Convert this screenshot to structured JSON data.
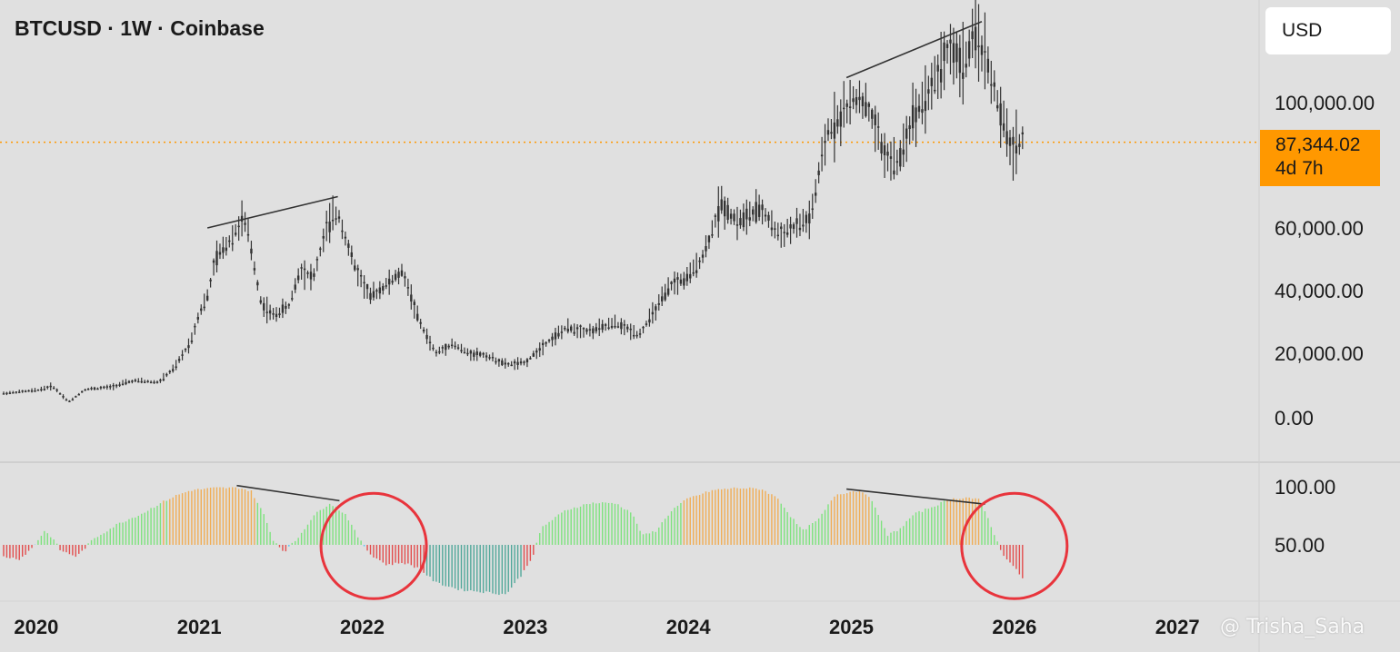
{
  "header": {
    "title": "BTCUSD · 1W · Coinbase"
  },
  "currency": {
    "label": "USD"
  },
  "last_price": {
    "value": "87,344.02",
    "countdown": "4d 7h",
    "level": 87344.02,
    "color": "#ff9800"
  },
  "watermark": {
    "text": "@ Trisha_Saha"
  },
  "chart_data": [
    {
      "type": "candlestick",
      "title": "BTCUSD · 1W · Coinbase",
      "y_tick_labels": [
        "100,000.00",
        "60,000.00",
        "40,000.00",
        "20,000.00",
        "0.00"
      ],
      "y_ticks": [
        100000,
        60000,
        40000,
        20000,
        0
      ],
      "x_tick_labels": [
        "2020",
        "2021",
        "2022",
        "2023",
        "2024",
        "2025",
        "2026",
        "2027"
      ],
      "x_ticks": [
        2020,
        2021,
        2022,
        2023,
        2024,
        2025,
        2026,
        2027
      ],
      "x_range": [
        2019.8,
        2027.25
      ],
      "grid": false,
      "candle_color": "#333333",
      "price_path": [
        [
          2019.8,
          7600
        ],
        [
          2020.0,
          8500
        ],
        [
          2020.1,
          9800
        ],
        [
          2020.2,
          5000
        ],
        [
          2020.3,
          8800
        ],
        [
          2020.45,
          9500
        ],
        [
          2020.6,
          11500
        ],
        [
          2020.75,
          11000
        ],
        [
          2020.85,
          15500
        ],
        [
          2020.95,
          24000
        ],
        [
          2021.0,
          33000
        ],
        [
          2021.05,
          38000
        ],
        [
          2021.1,
          50000
        ],
        [
          2021.2,
          57000
        ],
        [
          2021.27,
          63000
        ],
        [
          2021.3,
          58000
        ],
        [
          2021.38,
          36000
        ],
        [
          2021.45,
          32000
        ],
        [
          2021.55,
          35000
        ],
        [
          2021.62,
          47000
        ],
        [
          2021.7,
          44000
        ],
        [
          2021.78,
          60000
        ],
        [
          2021.85,
          65000
        ],
        [
          2021.95,
          48000
        ],
        [
          2022.05,
          38000
        ],
        [
          2022.15,
          42000
        ],
        [
          2022.25,
          46000
        ],
        [
          2022.35,
          30000
        ],
        [
          2022.45,
          20000
        ],
        [
          2022.55,
          23000
        ],
        [
          2022.65,
          20000
        ],
        [
          2022.75,
          19500
        ],
        [
          2022.88,
          16500
        ],
        [
          2023.0,
          17000
        ],
        [
          2023.12,
          23000
        ],
        [
          2023.25,
          28000
        ],
        [
          2023.4,
          27000
        ],
        [
          2023.55,
          29500
        ],
        [
          2023.7,
          26000
        ],
        [
          2023.8,
          34000
        ],
        [
          2023.9,
          42000
        ],
        [
          2024.0,
          44000
        ],
        [
          2024.1,
          52000
        ],
        [
          2024.2,
          68000
        ],
        [
          2024.3,
          62000
        ],
        [
          2024.45,
          66000
        ],
        [
          2024.55,
          58000
        ],
        [
          2024.65,
          60000
        ],
        [
          2024.75,
          63000
        ],
        [
          2024.85,
          90000
        ],
        [
          2024.95,
          97000
        ],
        [
          2025.05,
          102000
        ],
        [
          2025.12,
          96000
        ],
        [
          2025.2,
          84000
        ],
        [
          2025.28,
          80000
        ],
        [
          2025.38,
          96000
        ],
        [
          2025.5,
          106000
        ],
        [
          2025.6,
          118000
        ],
        [
          2025.68,
          112000
        ],
        [
          2025.77,
          122000
        ],
        [
          2025.85,
          110000
        ],
        [
          2025.92,
          95000
        ],
        [
          2025.98,
          85000
        ],
        [
          2026.05,
          88500
        ]
      ],
      "annotations": [
        {
          "type": "trendline",
          "from": [
            2021.05,
            60000
          ],
          "to": [
            2021.85,
            70000
          ],
          "color": "#333333"
        },
        {
          "type": "trendline",
          "from": [
            2024.97,
            108000
          ],
          "to": [
            2025.8,
            126000
          ],
          "color": "#333333"
        },
        {
          "type": "price_line",
          "value": 87344.02,
          "style": "dotted",
          "color": "#ff9800"
        }
      ]
    },
    {
      "type": "histogram",
      "y_tick_labels": [
        "100.00",
        "50.00"
      ],
      "y_ticks": [
        100,
        50
      ],
      "baseline": 50,
      "y_range": [
        3,
        101
      ],
      "colors": {
        "overbought": "#f0ad55",
        "bullish": "#7ee27e",
        "bearish": "#e24d4d",
        "oversold": "#52a89a",
        "neutral": "#4fc3f7"
      },
      "value_path": [
        [
          2019.8,
          40
        ],
        [
          2019.9,
          38
        ],
        [
          2019.98,
          48
        ],
        [
          2020.05,
          62
        ],
        [
          2020.1,
          56
        ],
        [
          2020.15,
          45
        ],
        [
          2020.25,
          40
        ],
        [
          2020.35,
          55
        ],
        [
          2020.5,
          68
        ],
        [
          2020.65,
          77
        ],
        [
          2020.75,
          85
        ],
        [
          2020.85,
          92
        ],
        [
          2020.95,
          97
        ],
        [
          2021.1,
          99
        ],
        [
          2021.25,
          99
        ],
        [
          2021.32,
          96
        ],
        [
          2021.4,
          75
        ],
        [
          2021.45,
          55
        ],
        [
          2021.52,
          44
        ],
        [
          2021.6,
          55
        ],
        [
          2021.7,
          75
        ],
        [
          2021.8,
          86
        ],
        [
          2021.9,
          76
        ],
        [
          2021.98,
          55
        ],
        [
          2022.05,
          42
        ],
        [
          2022.15,
          33
        ],
        [
          2022.25,
          35
        ],
        [
          2022.35,
          30
        ],
        [
          2022.45,
          18
        ],
        [
          2022.6,
          12
        ],
        [
          2022.75,
          10
        ],
        [
          2022.88,
          8
        ],
        [
          2022.98,
          25
        ],
        [
          2023.05,
          42
        ],
        [
          2023.1,
          65
        ],
        [
          2023.25,
          80
        ],
        [
          2023.4,
          86
        ],
        [
          2023.55,
          86
        ],
        [
          2023.65,
          78
        ],
        [
          2023.72,
          58
        ],
        [
          2023.8,
          62
        ],
        [
          2023.9,
          80
        ],
        [
          2024.0,
          90
        ],
        [
          2024.15,
          97
        ],
        [
          2024.3,
          99
        ],
        [
          2024.45,
          98
        ],
        [
          2024.55,
          90
        ],
        [
          2024.62,
          76
        ],
        [
          2024.7,
          62
        ],
        [
          2024.8,
          72
        ],
        [
          2024.9,
          93
        ],
        [
          2025.0,
          96
        ],
        [
          2025.08,
          96
        ],
        [
          2025.15,
          82
        ],
        [
          2025.22,
          58
        ],
        [
          2025.3,
          64
        ],
        [
          2025.38,
          76
        ],
        [
          2025.5,
          83
        ],
        [
          2025.6,
          89
        ],
        [
          2025.7,
          91
        ],
        [
          2025.78,
          89
        ],
        [
          2025.83,
          76
        ],
        [
          2025.88,
          58
        ],
        [
          2025.92,
          44
        ],
        [
          2025.98,
          34
        ],
        [
          2026.05,
          22
        ]
      ],
      "annotations": [
        {
          "type": "trendline",
          "from": [
            2021.23,
            101
          ],
          "to": [
            2021.86,
            88
          ],
          "color": "#333333"
        },
        {
          "type": "trendline",
          "from": [
            2024.97,
            98
          ],
          "to": [
            2025.82,
            85
          ],
          "color": "#333333"
        },
        {
          "type": "circle",
          "center": [
            2022.07,
            49
          ],
          "label": "",
          "color": "#e8343c"
        },
        {
          "type": "circle",
          "center": [
            2026.0,
            49
          ],
          "label": "",
          "color": "#e8343c"
        }
      ]
    }
  ]
}
